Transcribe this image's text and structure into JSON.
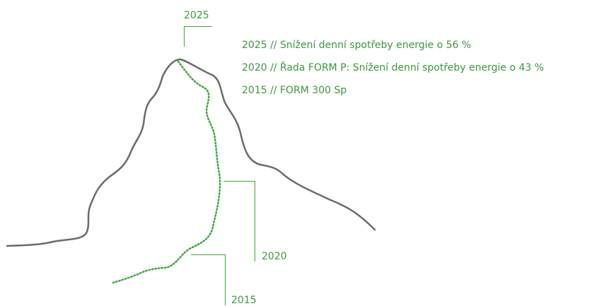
{
  "milestones": [
    {
      "year": "2025"
    },
    {
      "year": "2020"
    },
    {
      "year": "2015"
    }
  ],
  "notes": [
    "2025 // Snížení denní spotřeby energie o 56 %",
    "2020 // Řada FORM P: Snížení denní spotřeby energie o 43 %",
    "2015 // FORM 300 Sp"
  ]
}
